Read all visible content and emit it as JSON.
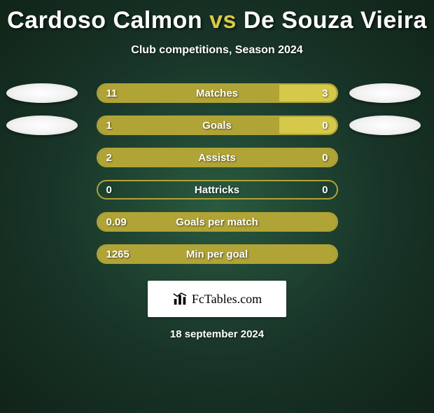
{
  "background": {
    "gradient_center": "#2a5a3f",
    "gradient_mid": "#183428",
    "gradient_edge": "#112418"
  },
  "title": {
    "player1": "Cardoso Calmon",
    "vs": "vs",
    "player2": "De Souza Vieira",
    "color": "#ffffff",
    "accent_color": "#d6c94a",
    "fontsize": 34,
    "fontweight": 800
  },
  "subtitle": {
    "text": "Club competitions, Season 2024",
    "color": "#ffffff",
    "fontsize": 16
  },
  "bar_style": {
    "track_width": 345,
    "track_height": 28,
    "border_color": "#b1a436",
    "border_radius": 14,
    "left_fill": "#b1a436",
    "right_fill": "#d6c94a",
    "text_color": "#ffffff",
    "label_fontsize": 15
  },
  "player_oval": {
    "width": 102,
    "height": 28,
    "fill": "#ffffff"
  },
  "stats": [
    {
      "label": "Matches",
      "left_val": "11",
      "right_val": "3",
      "left_pct": 76,
      "right_pct": 24,
      "show_ovals": true
    },
    {
      "label": "Goals",
      "left_val": "1",
      "right_val": "0",
      "left_pct": 76,
      "right_pct": 24,
      "show_ovals": true
    },
    {
      "label": "Assists",
      "left_val": "2",
      "right_val": "0",
      "left_pct": 100,
      "right_pct": 0,
      "show_ovals": false
    },
    {
      "label": "Hattricks",
      "left_val": "0",
      "right_val": "0",
      "left_pct": 0,
      "right_pct": 0,
      "show_ovals": false
    },
    {
      "label": "Goals per match",
      "left_val": "0.09",
      "right_val": "",
      "left_pct": 100,
      "right_pct": 0,
      "show_ovals": false
    },
    {
      "label": "Min per goal",
      "left_val": "1265",
      "right_val": "",
      "left_pct": 100,
      "right_pct": 0,
      "show_ovals": false
    }
  ],
  "logo": {
    "text": "FcTables.com",
    "text_color": "#000000",
    "box_bg": "#ffffff",
    "fontsize": 18
  },
  "date": {
    "text": "18 september 2024",
    "color": "#ffffff",
    "fontsize": 15
  }
}
